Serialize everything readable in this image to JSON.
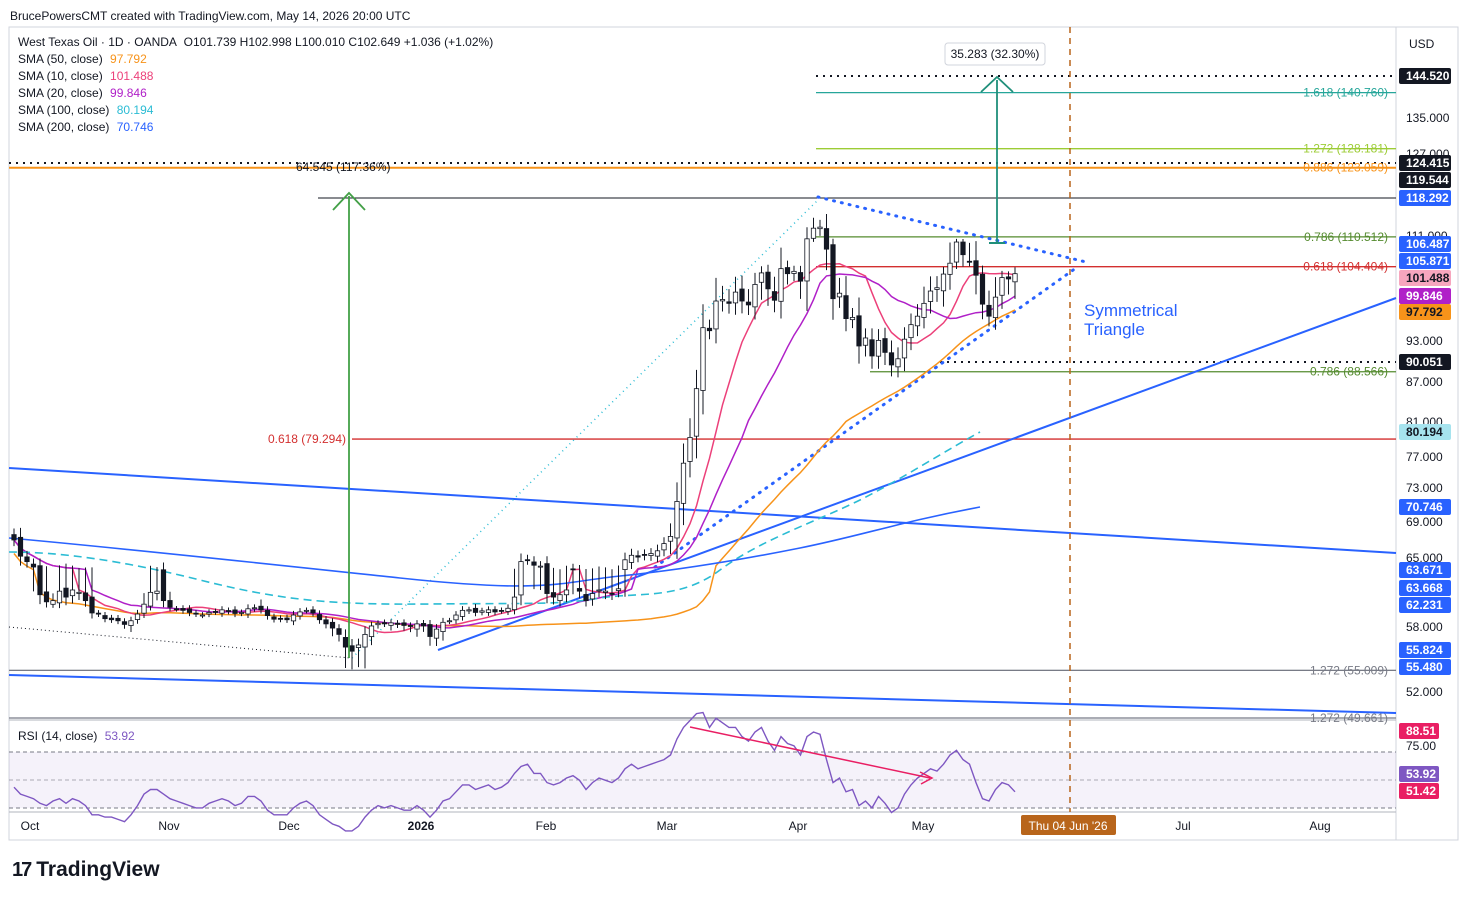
{
  "header": {
    "attribution": "BrucePowersCMT created with TradingView.com, May 14, 2026 20:00 UTC"
  },
  "legend": {
    "symbol": "West Texas Oil · 1D · OANDA",
    "ohlc": "O101.739 H102.998 L100.010 C102.649 +1.036 (+1.02%)",
    "sma": [
      {
        "label": "SMA (50, close)",
        "value": "97.792",
        "color": "#f7931a"
      },
      {
        "label": "SMA (10, close)",
        "value": "101.488",
        "color": "#ec407a"
      },
      {
        "label": "SMA (20, close)",
        "value": "99.846",
        "color": "#b020c8"
      },
      {
        "label": "SMA (100, close)",
        "value": "80.194",
        "color": "#2bbcd4"
      },
      {
        "label": "SMA (200, close)",
        "value": "70.746",
        "color": "#2962ff"
      }
    ],
    "rsi_label": "RSI (14, close)",
    "rsi_value": "53.92"
  },
  "brand": "TradingView",
  "chart_data": {
    "type": "candlestick",
    "instrument": "West Texas Oil",
    "timeframe": "1D",
    "axis": {
      "currency": "USD",
      "y_ticks": [
        "135.000",
        "127.000",
        "111.000",
        "93.000",
        "87.000",
        "81.000",
        "77.000",
        "73.000",
        "69.000",
        "65.000",
        "58.000",
        "52.000"
      ],
      "price_labels": [
        {
          "text": "144.520",
          "price": 144.52,
          "bg": "#131722",
          "fg": "#ffffff"
        },
        {
          "text": "124.415",
          "price": 124.415,
          "bg": "#131722",
          "fg": "#ffffff"
        },
        {
          "text": "119.544",
          "price": 119.544,
          "bg": "#131722",
          "fg": "#ffffff"
        },
        {
          "text": "118.292",
          "price": 118.292,
          "bg": "#2962ff",
          "fg": "#ffffff"
        },
        {
          "text": "106.487",
          "price": 106.487,
          "bg": "#2962ff",
          "fg": "#ffffff"
        },
        {
          "text": "105.871",
          "price": 105.871,
          "bg": "#2962ff",
          "fg": "#ffffff"
        },
        {
          "text": "101.488",
          "price": 101.488,
          "bg": "#f7a6be",
          "fg": "#131722"
        },
        {
          "text": "99.846",
          "price": 99.846,
          "bg": "#b020c8",
          "fg": "#ffffff"
        },
        {
          "text": "97.792",
          "price": 97.792,
          "bg": "#f7931a",
          "fg": "#131722"
        },
        {
          "text": "90.051",
          "price": 90.051,
          "bg": "#131722",
          "fg": "#ffffff"
        },
        {
          "text": "80.194",
          "price": 80.194,
          "bg": "#a6e3ee",
          "fg": "#131722"
        },
        {
          "text": "70.746",
          "price": 70.746,
          "bg": "#2962ff",
          "fg": "#ffffff"
        },
        {
          "text": "63.671",
          "price": 63.671,
          "bg": "#2962ff",
          "fg": "#ffffff"
        },
        {
          "text": "63.668",
          "price": 63.668,
          "bg": "#2962ff",
          "fg": "#ffffff"
        },
        {
          "text": "62.231",
          "price": 62.231,
          "bg": "#2962ff",
          "fg": "#ffffff"
        },
        {
          "text": "55.824",
          "price": 55.824,
          "bg": "#2962ff",
          "fg": "#ffffff"
        },
        {
          "text": "55.480",
          "price": 55.48,
          "bg": "#2962ff",
          "fg": "#ffffff"
        }
      ],
      "x_ticks": [
        "Oct",
        "Nov",
        "Dec",
        "2026",
        "Feb",
        "Mar",
        "Apr",
        "May",
        "Jul",
        "Aug"
      ],
      "x_marker": "Thu 04 Jun '26",
      "rsi_ticks": [
        "75.00"
      ],
      "rsi_labels": [
        {
          "text": "88.51",
          "bg": "#e91e63"
        },
        {
          "text": "53.92",
          "bg": "#7e57c2"
        },
        {
          "text": "51.42",
          "bg": "#e91e63"
        }
      ]
    },
    "fib_levels": [
      {
        "text": "1.618 (140.760)",
        "price": 140.76,
        "color": "#26a69a"
      },
      {
        "text": "1.272 (128.181)",
        "price": 128.181,
        "color": "#9ccc35"
      },
      {
        "text": "0.886 (123.059)",
        "price": 123.059,
        "color": "#f7931a"
      },
      {
        "text": "0.786 (110.512)",
        "price": 110.512,
        "color": "#558b2f"
      },
      {
        "text": "0.618 (104.404)",
        "price": 104.404,
        "color": "#d32f2f"
      },
      {
        "text": "0.786 (88.566)",
        "price": 88.566,
        "color": "#558b2f"
      },
      {
        "text": "0.618 (79.294)",
        "price": 79.294,
        "color": "#d32f2f"
      },
      {
        "text": "1.272 (55.009)",
        "price": 55.009,
        "color": "#787b86"
      },
      {
        "text": "1.272 (49.661)",
        "price": 49.661,
        "color": "#787b86"
      }
    ],
    "annotations": {
      "projection_box": "35.283 (32.30%)",
      "left_measure": "64.545 (117.36%)",
      "pattern": "Symmetrical Triangle"
    },
    "closes_approx": [
      67,
      65.2,
      64.6,
      64,
      63.1,
      62.5,
      62.6,
      63.4,
      62.9,
      63.5,
      63.3,
      62.6,
      60.7,
      60.5,
      59.6,
      59.4,
      59.2,
      58.5,
      59.2,
      60.5,
      62.3,
      63.3,
      63.4,
      62.6,
      61.8,
      61.5,
      61.2,
      60.8,
      60.5,
      60.3,
      60.8,
      60.9,
      61.3,
      61,
      60.6,
      60.8,
      61.5,
      61.7,
      61.3,
      60.2,
      59.5,
      59.5,
      59.4,
      60.3,
      60.9,
      61.2,
      60.7,
      59.4,
      58.6,
      57.9,
      57.3,
      56.1,
      55.8,
      56.3,
      57.3,
      58.2,
      58.7,
      58.6,
      58.8,
      58.5,
      58.3,
      58.1,
      58.6,
      58.2,
      57.1,
      57.8,
      58.9,
      59.2,
      60.3,
      61.2,
      61.3,
      60.8,
      61.1,
      61.3,
      60.9,
      61.1,
      61.6,
      62.9,
      64.6,
      64.8,
      64.2,
      64.1,
      63.2,
      62.9,
      63.1,
      63.5,
      63.7,
      63.4,
      62.6,
      63.2,
      63.5,
      63.4,
      63.2,
      63.6,
      64.8,
      65.3,
      65.1,
      65.3,
      65.5,
      65.8,
      66.6,
      67.4,
      71.4,
      76.2,
      79.5,
      86,
      95.2,
      94.7,
      99.2,
      99.4,
      98.9,
      100.2,
      99.2,
      98.7,
      100.9,
      102.8,
      100.5,
      99.3,
      103.9,
      102.6,
      103.2,
      101.2,
      109.4,
      112.5,
      112.7,
      106.3,
      99.5,
      100.1,
      96.7,
      96.9,
      92.3,
      93.5,
      90.9,
      93.1,
      91.4,
      89.6,
      90.5,
      93.3,
      95.7,
      97.1,
      98.9,
      100.3,
      100.6,
      102.5,
      105.3,
      107.6,
      106.1,
      105.8,
      102.2,
      98.8,
      97.1,
      99.7,
      101.6,
      101.4,
      102.6
    ],
    "rsi_approx": [
      56,
      53,
      52,
      51,
      49,
      48,
      50,
      51,
      49,
      51,
      50,
      48,
      44,
      44,
      43,
      43,
      42,
      41,
      44,
      48,
      53,
      55,
      55,
      53,
      51,
      50,
      49,
      48,
      47,
      47,
      49,
      50,
      51,
      50,
      48,
      49,
      52,
      52,
      50,
      46,
      44,
      44,
      44,
      47,
      49,
      50,
      48,
      44,
      42,
      40,
      39,
      37,
      37,
      39,
      43,
      46,
      48,
      47,
      48,
      47,
      46,
      46,
      48,
      46,
      43,
      46,
      50,
      51,
      54,
      57,
      57,
      55,
      56,
      57,
      55,
      56,
      58,
      62,
      65,
      66,
      62,
      62,
      58,
      57,
      58,
      60,
      61,
      59,
      55,
      58,
      60,
      59,
      58,
      60,
      64,
      66,
      64,
      65,
      66,
      67,
      68,
      70,
      77,
      82,
      85,
      88,
      88.5,
      82,
      86,
      84,
      82,
      82,
      78,
      76,
      80,
      82,
      76,
      72,
      78,
      75,
      74,
      70,
      78,
      80,
      79,
      68,
      58,
      60,
      54,
      55,
      48,
      50,
      47,
      52,
      49,
      45,
      47,
      53,
      57,
      60,
      62,
      64,
      63,
      66,
      70,
      72,
      68,
      66,
      58,
      51,
      50,
      55,
      58,
      57,
      54
    ]
  }
}
